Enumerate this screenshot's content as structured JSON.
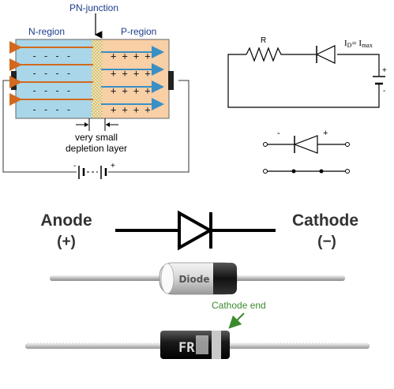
{
  "pn_diagram": {
    "junction_label": "PN-junction",
    "n_region_label": "N-region",
    "p_region_label": "P-region",
    "depletion_label_line1": "very small",
    "depletion_label_line2": "depletion layer",
    "battery_minus": "-",
    "battery_plus": "+",
    "n_color": "#a9d6e8",
    "p_color": "#f9cfa6"
  },
  "circuit": {
    "resistor_label": "R",
    "current_label": "I",
    "current_sub": "D",
    "current_eq": "= I",
    "current_max": "max",
    "battery_plus": "+",
    "battery_minus": "-"
  },
  "switch_equiv": {
    "minus_label": "-",
    "plus_label": "+"
  },
  "symbol": {
    "anode_label": "Anode",
    "anode_sign": "(+)",
    "cathode_label": "Cathode",
    "cathode_sign": "(−)"
  },
  "component": {
    "body_text": "Diode",
    "cathode_end_label": "Cathode end",
    "marking_text": "FR"
  }
}
